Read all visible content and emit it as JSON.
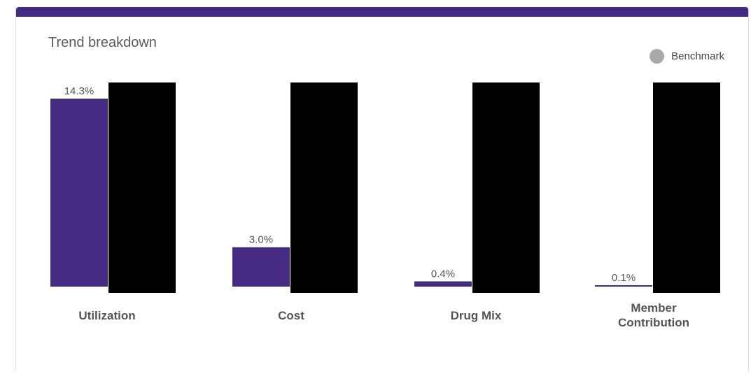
{
  "card": {
    "title": "Trend breakdown"
  },
  "colors": {
    "accent": "#442a80",
    "benchmark_legend": "#a9a9a9",
    "benchmark_bar": "#000000"
  },
  "legend": {
    "label": "Benchmark"
  },
  "chart_data": {
    "type": "bar",
    "categories": [
      "Utilization",
      "Cost",
      "Drug Mix",
      "Member Contribution"
    ],
    "category_lines": [
      [
        "Utilization"
      ],
      [
        "Cost"
      ],
      [
        "Drug Mix"
      ],
      [
        "Member",
        "Contribution"
      ]
    ],
    "series": [
      {
        "values": [
          14.3,
          3.0,
          0.4,
          0.1
        ],
        "labels": [
          "14.3%",
          "3.0%",
          "0.4%",
          "0.1%"
        ]
      },
      {
        "name": "Benchmark",
        "values": [
          null,
          null,
          null,
          null
        ],
        "redacted": true
      }
    ],
    "legend_position": "top-right",
    "grid": false
  }
}
